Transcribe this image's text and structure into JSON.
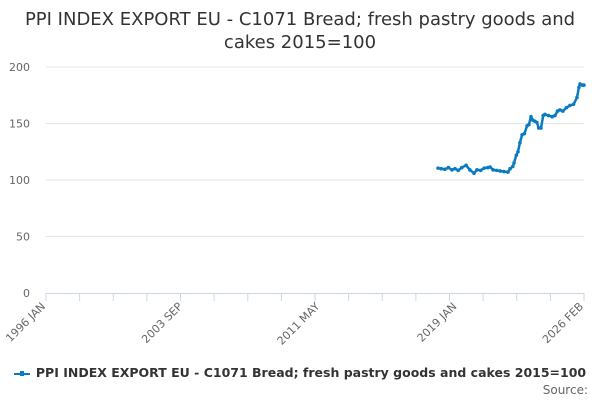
{
  "chart_data": {
    "type": "line",
    "title": "PPI INDEX EXPORT EU - C1071 Bread; fresh pastry goods and cakes 2015=100",
    "xlabel": "",
    "ylabel": "",
    "xlim": [
      1996.0,
      2026.083
    ],
    "ylim": [
      0,
      200
    ],
    "y_ticks": [
      0,
      50,
      100,
      150,
      200
    ],
    "x_tick_labels": [
      {
        "t": 1996.0,
        "label": "1996 JAN"
      },
      {
        "t": 2003.667,
        "label": "2003 SEP"
      },
      {
        "t": 2011.333,
        "label": "2011 MAY"
      },
      {
        "t": 2019.0,
        "label": "2019 JAN"
      },
      {
        "t": 2026.083,
        "label": "2026 FEB"
      }
    ],
    "grid": true,
    "legend_position": "bottom",
    "series": [
      {
        "name": "PPI INDEX EXPORT EU - C1071 Bread; fresh pastry goods and cakes 2015=100",
        "color": "#0a7bc1",
        "points": [
          [
            2017.92,
            110.5
          ],
          [
            2018.1,
            110
          ],
          [
            2018.3,
            109.5
          ],
          [
            2018.5,
            111
          ],
          [
            2018.7,
            109
          ],
          [
            2018.87,
            110
          ],
          [
            2019.05,
            108.5
          ],
          [
            2019.25,
            111
          ],
          [
            2019.49,
            113
          ],
          [
            2019.7,
            109
          ],
          [
            2019.93,
            106
          ],
          [
            2020.1,
            109
          ],
          [
            2020.3,
            108.5
          ],
          [
            2020.5,
            110.5
          ],
          [
            2020.7,
            111
          ],
          [
            2020.83,
            111.5
          ],
          [
            2021.0,
            109
          ],
          [
            2021.2,
            108.5
          ],
          [
            2021.39,
            108
          ],
          [
            2021.6,
            107.5
          ],
          [
            2021.83,
            107
          ],
          [
            2021.95,
            110
          ],
          [
            2022.1,
            112
          ],
          [
            2022.17,
            115
          ],
          [
            2022.3,
            122
          ],
          [
            2022.39,
            125
          ],
          [
            2022.5,
            133
          ],
          [
            2022.62,
            140
          ],
          [
            2022.75,
            141
          ],
          [
            2022.9,
            148
          ],
          [
            2023.0,
            149
          ],
          [
            2023.12,
            156
          ],
          [
            2023.22,
            153
          ],
          [
            2023.34,
            152
          ],
          [
            2023.45,
            151
          ],
          [
            2023.55,
            146
          ],
          [
            2023.68,
            146
          ],
          [
            2023.8,
            157
          ],
          [
            2023.9,
            158
          ],
          [
            2024.1,
            157
          ],
          [
            2024.3,
            156
          ],
          [
            2024.46,
            157
          ],
          [
            2024.6,
            161
          ],
          [
            2024.74,
            162
          ],
          [
            2024.9,
            161
          ],
          [
            2025.1,
            164
          ],
          [
            2025.3,
            166
          ],
          [
            2025.5,
            167
          ],
          [
            2025.69,
            173
          ],
          [
            2025.8,
            182
          ],
          [
            2025.86,
            185
          ],
          [
            2026.0,
            184
          ],
          [
            2026.08,
            184
          ]
        ]
      }
    ],
    "source_label": "Source:"
  }
}
